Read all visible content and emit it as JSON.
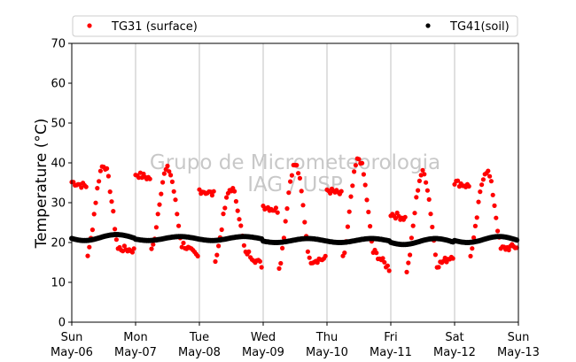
{
  "chart_data": {
    "type": "scatter",
    "ylabel": "Temperature (°C)",
    "ylim": [
      0,
      70
    ],
    "yticks": [
      0,
      10,
      20,
      30,
      40,
      50,
      60,
      70
    ],
    "xlim": [
      "2018-05-06",
      "2018-05-13"
    ],
    "xticks": [
      {
        "day": "Sun",
        "date": "May-06"
      },
      {
        "day": "Mon",
        "date": "May-07"
      },
      {
        "day": "Tue",
        "date": "May-08"
      },
      {
        "day": "Wed",
        "date": "May-09"
      },
      {
        "day": "Thu",
        "date": "May-10"
      },
      {
        "day": "Fri",
        "date": "May-11"
      },
      {
        "day": "Sat",
        "date": "May-12"
      },
      {
        "day": "Sun",
        "date": "May-13"
      }
    ],
    "grid": "vertical",
    "legend_position": "top",
    "watermark": [
      "Grupo de Micrometeorologia",
      "IAG / USP"
    ],
    "series": [
      {
        "name": "TG31 (surface)",
        "color": "#ff0000",
        "daily_min": [
          17,
          18,
          16,
          14,
          16,
          13,
          17
        ],
        "daily_max": [
          39.5,
          38.5,
          33.5,
          39.5,
          41,
          37.5,
          38
        ]
      },
      {
        "name": "TG41(soil)",
        "color": "#000000",
        "daily_min": [
          20.5,
          20.5,
          20.5,
          20,
          20,
          19.5,
          20
        ],
        "daily_max": [
          22,
          21.5,
          21.5,
          21,
          21,
          21,
          21.5
        ]
      }
    ]
  }
}
